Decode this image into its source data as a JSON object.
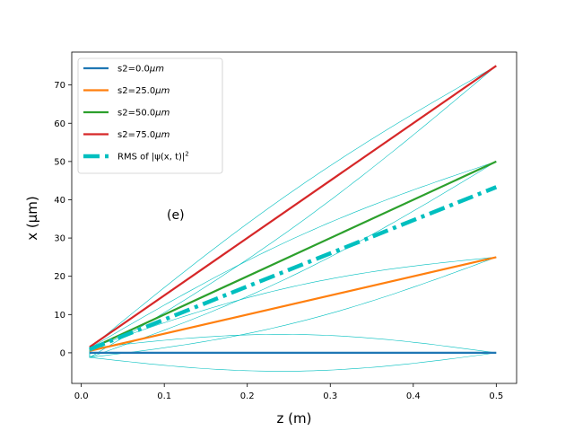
{
  "chart_data": {
    "type": "line",
    "title": "",
    "xlabel": "z (m)",
    "ylabel": "x  (μm)",
    "xlim": [
      -0.0115,
      0.5245
    ],
    "ylim": [
      -8.0,
      78.6
    ],
    "xticks": [
      0.0,
      0.1,
      0.2,
      0.3,
      0.4,
      0.5
    ],
    "xtick_labels": [
      "0.0",
      "0.1",
      "0.2",
      "0.3",
      "0.4",
      "0.5"
    ],
    "yticks": [
      0,
      10,
      20,
      30,
      40,
      50,
      60,
      70
    ],
    "ytick_labels": [
      "0",
      "10",
      "20",
      "30",
      "40",
      "50",
      "60",
      "70"
    ],
    "grid": false,
    "legend_position": "top-left",
    "annotation": "(e)",
    "series": [
      {
        "name": "s2=0.0μm",
        "label_main": "s2=0.0",
        "label_unit": "μm",
        "color": "#1f77b4",
        "style": "solid",
        "x": [
          0.01,
          0.5
        ],
        "y": [
          0.0,
          0.0
        ]
      },
      {
        "name": "s2=25.0μm",
        "label_main": "s2=25.0",
        "label_unit": "μm",
        "color": "#ff7f0e",
        "style": "solid",
        "x": [
          0.01,
          0.5
        ],
        "y": [
          0.5,
          25.0
        ]
      },
      {
        "name": "s2=50.0μm",
        "label_main": "s2=50.0",
        "label_unit": "μm",
        "color": "#2ca02c",
        "style": "solid",
        "x": [
          0.01,
          0.5
        ],
        "y": [
          1.0,
          50.0
        ]
      },
      {
        "name": "s2=75.0μm",
        "label_main": "s2=75.0",
        "label_unit": "μm",
        "color": "#d62728",
        "style": "solid",
        "x": [
          0.01,
          0.5
        ],
        "y": [
          1.5,
          75.0
        ]
      },
      {
        "name": "RMS of |ψ(x, t)|²",
        "label_main": "RMS of |ψ(x, t)|",
        "label_unit": "2",
        "color": "#00bfbf",
        "style": "dashdot",
        "x": [
          0.01,
          0.5
        ],
        "y": [
          0.9,
          43.3
        ]
      }
    ],
    "envelopes": [
      {
        "center": 0.0,
        "half_width": 4.2
      },
      {
        "center": 25.0,
        "half_width": 4.2
      },
      {
        "center": 50.0,
        "half_width": 4.2
      },
      {
        "center": 75.0,
        "half_width": 4.2
      }
    ],
    "envelope_color": "#00bfbf",
    "envelope_x": [
      0.01,
      0.5
    ],
    "envelope_start_half_width": 1.2
  }
}
